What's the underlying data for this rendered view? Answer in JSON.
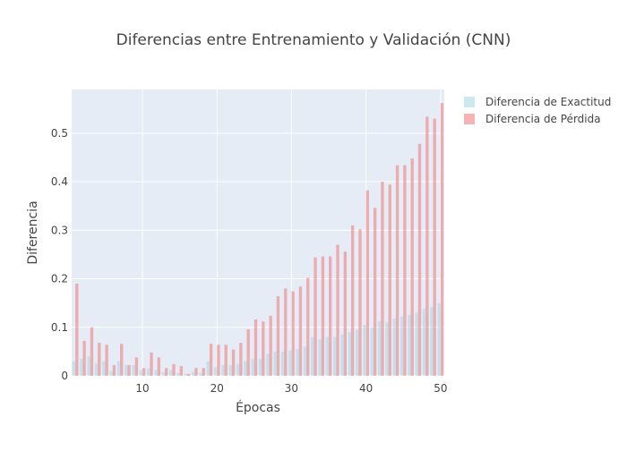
{
  "chart_data": {
    "type": "bar",
    "title": "Diferencias entre Entrenamiento y Validación (CNN)",
    "xlabel": "Épocas",
    "ylabel": "Diferencia",
    "x": [
      1,
      2,
      3,
      4,
      5,
      6,
      7,
      8,
      9,
      10,
      11,
      12,
      13,
      14,
      15,
      16,
      17,
      18,
      19,
      20,
      21,
      22,
      23,
      24,
      25,
      26,
      27,
      28,
      29,
      30,
      31,
      32,
      33,
      34,
      35,
      36,
      37,
      38,
      39,
      40,
      41,
      42,
      43,
      44,
      45,
      46,
      47,
      48,
      49,
      50
    ],
    "xlim": [
      0.5,
      50.5
    ],
    "ylim": [
      0,
      0.59
    ],
    "xticks": [
      10,
      20,
      30,
      40,
      50
    ],
    "yticks": [
      0,
      0.1,
      0.2,
      0.3,
      0.4,
      0.5
    ],
    "ytick_labels": [
      "0",
      "0.1",
      "0.2",
      "0.3",
      "0.4",
      "0.5"
    ],
    "grid": true,
    "legend_position": "top-right",
    "series": [
      {
        "name": "Diferencia de Exactitud",
        "color": "#add8e6",
        "values": [
          0.03,
          0.035,
          0.04,
          0.025,
          0.03,
          0.01,
          0.03,
          0.022,
          0.022,
          0.012,
          0.015,
          0.012,
          0.008,
          0.012,
          0.006,
          0.004,
          0.008,
          0.006,
          0.03,
          0.018,
          0.022,
          0.022,
          0.025,
          0.03,
          0.035,
          0.035,
          0.045,
          0.05,
          0.05,
          0.052,
          0.055,
          0.06,
          0.08,
          0.075,
          0.08,
          0.08,
          0.085,
          0.09,
          0.095,
          0.105,
          0.1,
          0.112,
          0.11,
          0.118,
          0.122,
          0.125,
          0.13,
          0.138,
          0.142,
          0.15
        ]
      },
      {
        "name": "Diferencia de Pérdida",
        "color": "#f08080",
        "values": [
          0.19,
          0.072,
          0.1,
          0.068,
          0.064,
          0.022,
          0.066,
          0.022,
          0.038,
          0.016,
          0.048,
          0.038,
          0.016,
          0.024,
          0.02,
          0.004,
          0.016,
          0.016,
          0.066,
          0.064,
          0.064,
          0.054,
          0.068,
          0.096,
          0.116,
          0.112,
          0.124,
          0.164,
          0.18,
          0.174,
          0.184,
          0.202,
          0.244,
          0.246,
          0.246,
          0.27,
          0.256,
          0.31,
          0.302,
          0.382,
          0.346,
          0.4,
          0.394,
          0.434,
          0.434,
          0.448,
          0.478,
          0.534,
          0.53,
          0.562
        ]
      }
    ]
  }
}
